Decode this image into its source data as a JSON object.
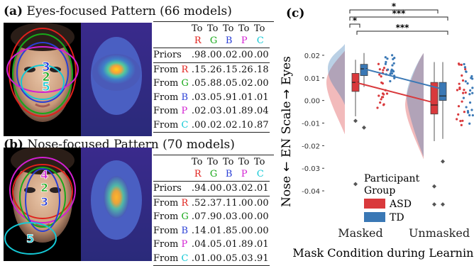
{
  "panel_a": {
    "label": "(a)",
    "title": "Eyes-focused Pattern (66 models)",
    "col_prefix": "To",
    "cols": [
      {
        "letter": "R",
        "color": "#e0201b"
      },
      {
        "letter": "G",
        "color": "#18a81a"
      },
      {
        "letter": "B",
        "color": "#2a3fd6"
      },
      {
        "letter": "P",
        "color": "#d21fd2"
      },
      {
        "letter": "C",
        "color": "#14c9d6"
      }
    ],
    "priors_label": "Priors",
    "priors": [
      ".98",
      ".00",
      ".02",
      ".00",
      ".00"
    ],
    "from_prefix": "From",
    "rows": [
      {
        "from": "R",
        "color": "#e0201b",
        "vals": [
          ".15",
          ".26",
          ".15",
          ".26",
          ".18"
        ]
      },
      {
        "from": "G",
        "color": "#18a81a",
        "vals": [
          ".05",
          ".88",
          ".05",
          ".02",
          ".00"
        ]
      },
      {
        "from": "B",
        "color": "#2a3fd6",
        "vals": [
          ".03",
          ".05",
          ".91",
          ".01",
          ".01"
        ]
      },
      {
        "from": "P",
        "color": "#d21fd2",
        "vals": [
          ".02",
          ".03",
          ".01",
          ".89",
          ".04"
        ]
      },
      {
        "from": "C",
        "color": "#14c9d6",
        "vals": [
          ".00",
          ".02",
          ".02",
          ".10",
          ".87"
        ]
      }
    ],
    "roi_labels": [
      "3",
      "2",
      "5"
    ]
  },
  "panel_b": {
    "label": "(b)",
    "title": "Nose-focused Pattern (70 models)",
    "col_prefix": "To",
    "cols": [
      {
        "letter": "R",
        "color": "#e0201b"
      },
      {
        "letter": "G",
        "color": "#18a81a"
      },
      {
        "letter": "B",
        "color": "#2a3fd6"
      },
      {
        "letter": "P",
        "color": "#d21fd2"
      },
      {
        "letter": "C",
        "color": "#14c9d6"
      }
    ],
    "priors_label": "Priors",
    "priors": [
      ".94",
      ".00",
      ".03",
      ".02",
      ".01"
    ],
    "from_prefix": "From",
    "rows": [
      {
        "from": "R",
        "color": "#e0201b",
        "vals": [
          ".52",
          ".37",
          ".11",
          ".00",
          ".00"
        ]
      },
      {
        "from": "G",
        "color": "#18a81a",
        "vals": [
          ".07",
          ".90",
          ".03",
          ".00",
          ".00"
        ]
      },
      {
        "from": "B",
        "color": "#2a3fd6",
        "vals": [
          ".14",
          ".01",
          ".85",
          ".00",
          ".00"
        ]
      },
      {
        "from": "P",
        "color": "#d21fd2",
        "vals": [
          ".04",
          ".05",
          ".01",
          ".89",
          ".01"
        ]
      },
      {
        "from": "C",
        "color": "#14c9d6",
        "vals": [
          ".01",
          ".00",
          ".05",
          ".03",
          ".91"
        ]
      }
    ],
    "roi_labels": [
      "4",
      "2",
      "3",
      "5"
    ]
  },
  "panel_c": {
    "label": "(c)",
    "ylabel_bottom": "Nose",
    "ylabel_mid": "EN Scale",
    "ylabel_top": "Eyes",
    "xlabel": "Mask Condition during Learning",
    "sig": [
      "*",
      "***",
      "*",
      "***"
    ],
    "legend_title_1": "Participant",
    "legend_title_2": "Group",
    "colors": {
      "ASD": "#d9393c",
      "TD": "#3a78b5"
    }
  },
  "chart_data": {
    "type": "box",
    "categories": [
      "Masked",
      "Unmasked"
    ],
    "yticks": [
      0.02,
      0.01,
      0.0,
      -0.01,
      -0.02,
      -0.03,
      -0.04
    ],
    "ytick_labels": [
      "0.02",
      "0.01",
      "0.00",
      "-0.01",
      "-0.02",
      "-0.03",
      "-0.04"
    ],
    "ylim": [
      -0.045,
      0.025
    ],
    "series": [
      {
        "name": "ASD",
        "color": "#d9393c",
        "box": [
          {
            "q1": 0.004,
            "median": 0.008,
            "q3": 0.012,
            "whisker_low": -0.007,
            "whisker_high": 0.018,
            "outliers": [
              -0.009,
              -0.037
            ]
          },
          {
            "q1": -0.006,
            "median": -0.002,
            "q3": 0.008,
            "whisker_low": -0.018,
            "whisker_high": 0.017,
            "outliers": [
              -0.038,
              -0.046
            ]
          }
        ],
        "mean_line": [
          0.008,
          -0.001
        ]
      },
      {
        "name": "TD",
        "color": "#3a78b5",
        "box": [
          {
            "q1": 0.011,
            "median": 0.014,
            "q3": 0.016,
            "whisker_low": 0.006,
            "whisker_high": 0.021,
            "outliers": [
              -0.012
            ]
          },
          {
            "q1": 0.0,
            "median": 0.002,
            "q3": 0.008,
            "whisker_low": -0.017,
            "whisker_high": 0.017,
            "outliers": [
              -0.027,
              -0.046
            ]
          }
        ],
        "mean_line": [
          0.014,
          0.005
        ]
      }
    ]
  }
}
